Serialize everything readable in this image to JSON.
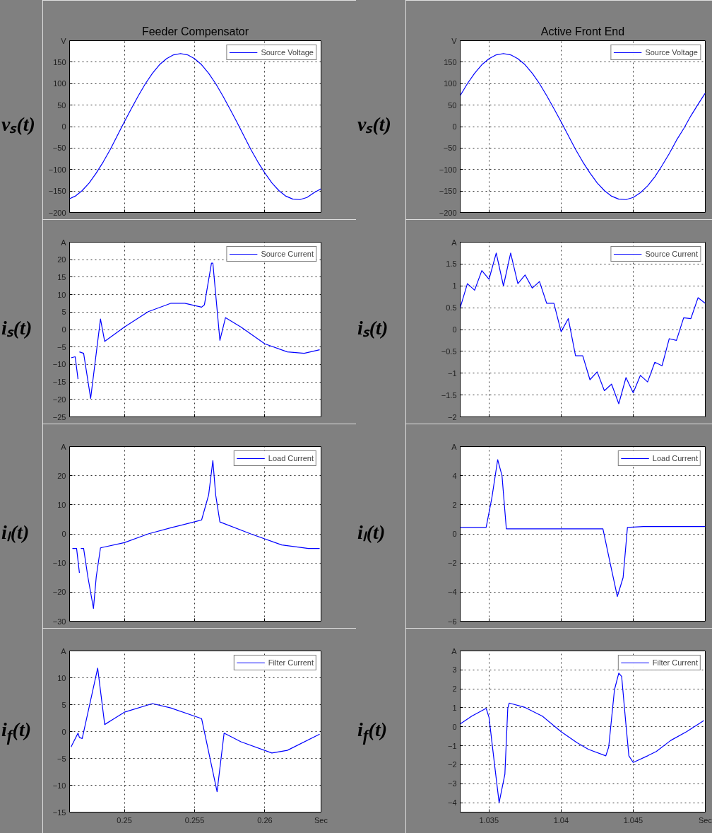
{
  "chart_data": [
    {
      "type": "line",
      "title": "Feeder Compensator",
      "ylabel": "vₛ(t)",
      "xlim": [
        0.2461,
        0.264
      ],
      "ylim": [
        -200,
        200
      ],
      "xticks": [
        0.25,
        0.255,
        0.26
      ],
      "yticks": [
        -200,
        -150,
        -100,
        -50,
        0,
        50,
        100,
        150,
        {
          "value": 200,
          "label": "V"
        }
      ],
      "tick_labels": "y",
      "grid": true,
      "legend": "top right",
      "line_style": "solid",
      "series": [
        {
          "name": "Source Voltage",
          "color": "#0000ff",
          "x": [
            0.2461,
            0.2465,
            0.247,
            0.2475,
            0.248,
            0.2485,
            0.249,
            0.2495,
            0.25,
            0.2505,
            0.251,
            0.2515,
            0.252,
            0.2525,
            0.253,
            0.2535,
            0.254,
            0.2545,
            0.255,
            0.2555,
            0.256,
            0.2565,
            0.257,
            0.2575,
            0.258,
            0.2585,
            0.259,
            0.2595,
            0.26,
            0.2605,
            0.261,
            0.2615,
            0.262,
            0.2625,
            0.263,
            0.2635,
            0.264
          ],
          "values": [
            -168,
            -162,
            -149,
            -131,
            -108,
            -82,
            -53,
            -21,
            11,
            42,
            72,
            100,
            124,
            144,
            158,
            167,
            170,
            167,
            158,
            144,
            124,
            100,
            72,
            42,
            11,
            -21,
            -53,
            -82,
            -108,
            -131,
            -149,
            -162,
            -169,
            -170,
            -165,
            -154,
            -145
          ]
        }
      ]
    },
    {
      "type": "line",
      "title": "Active Front End",
      "ylabel": "vₛ(t)",
      "xlim": [
        1.033,
        1.05
      ],
      "ylim": [
        -200,
        200
      ],
      "xticks": [
        1.035,
        1.04,
        1.045
      ],
      "yticks": [
        -200,
        -150,
        -100,
        -50,
        0,
        50,
        100,
        150,
        {
          "value": 200,
          "label": "V"
        }
      ],
      "tick_labels": "y",
      "grid": true,
      "legend": "top right",
      "line_style": "solid",
      "series": [
        {
          "name": "Source Voltage",
          "color": "#0000ff",
          "x": [
            1.033,
            1.0335,
            1.034,
            1.0345,
            1.035,
            1.0355,
            1.036,
            1.0365,
            1.037,
            1.0375,
            1.038,
            1.0385,
            1.039,
            1.0395,
            1.04,
            1.0405,
            1.041,
            1.0415,
            1.042,
            1.0425,
            1.043,
            1.0435,
            1.044,
            1.0445,
            1.045,
            1.0455,
            1.046,
            1.0465,
            1.047,
            1.0475,
            1.048,
            1.0485,
            1.049,
            1.0495,
            1.05
          ],
          "values": [
            72,
            100,
            124,
            144,
            158,
            167,
            170,
            167,
            158,
            144,
            124,
            100,
            72,
            42,
            11,
            -21,
            -53,
            -82,
            -108,
            -131,
            -149,
            -162,
            -169,
            -170,
            -165,
            -154,
            -138,
            -117,
            -91,
            -63,
            -32,
            -5,
            25,
            52,
            78
          ]
        }
      ]
    },
    {
      "type": "line",
      "ylabel": "iₛ(t)",
      "xlim": [
        0.2461,
        0.264
      ],
      "ylim": [
        -25,
        25
      ],
      "xticks": [
        0.25,
        0.255,
        0.26
      ],
      "yticks": [
        -25,
        -20,
        -15,
        -10,
        -5,
        0,
        5,
        10,
        15,
        20,
        {
          "value": 25,
          "label": "A"
        }
      ],
      "tick_labels": "y",
      "grid": true,
      "legend": "top right",
      "line_style": "solid",
      "series": [
        {
          "name": "Source Current",
          "color": "#0000ff",
          "x": [
            0.2468,
            0.2471,
            0.2476,
            0.2483,
            0.2486,
            0.25,
            0.2517,
            0.2533,
            0.2543,
            0.2555,
            0.2557,
            0.2562,
            0.2563,
            0.2568,
            0.2572,
            0.2583,
            0.26,
            0.2616,
            0.2628,
            0.2639
          ],
          "values": [
            -6.4,
            -6.8,
            -19.7,
            3,
            -3.4,
            0.7,
            5.1,
            7.5,
            7.5,
            6.4,
            7.1,
            19,
            19,
            -3.1,
            3.4,
            0.7,
            -4.1,
            -6.4,
            -6.8,
            -5.8
          ]
        },
        {
          "color": "#0000ff",
          "x": [
            0.2462,
            0.2465,
            0.2467
          ],
          "values": [
            -8.1,
            -7.8,
            -14.2
          ]
        }
      ]
    },
    {
      "type": "line",
      "ylabel": "iₛ(t)",
      "xlim": [
        1.033,
        1.05
      ],
      "ylim": [
        -2,
        2
      ],
      "xticks": [
        1.035,
        1.04,
        1.045
      ],
      "yticks": [
        -2,
        -1.5,
        -1,
        -0.5,
        0,
        0.5,
        1,
        1.5,
        {
          "value": 2,
          "label": "A"
        }
      ],
      "tick_labels": "y",
      "grid": true,
      "legend": "top right",
      "line_style": "solid",
      "series": [
        {
          "name": "Source Current",
          "color": "#0000ff",
          "x": [
            1.033,
            1.0335,
            1.034,
            1.0345,
            1.035,
            1.0355,
            1.036,
            1.0365,
            1.037,
            1.0375,
            1.038,
            1.0385,
            1.039,
            1.0395,
            1.04,
            1.0405,
            1.041,
            1.0415,
            1.042,
            1.0425,
            1.043,
            1.0435,
            1.044,
            1.0445,
            1.045,
            1.0455,
            1.046,
            1.0465,
            1.047,
            1.0475,
            1.048,
            1.0485,
            1.049,
            1.0495,
            1.05
          ],
          "values": [
            0.5,
            1.05,
            0.9,
            1.35,
            1.15,
            1.75,
            1.0,
            1.75,
            1.05,
            1.25,
            0.95,
            1.1,
            0.6,
            0.6,
            -0.05,
            0.25,
            -0.6,
            -0.6,
            -1.15,
            -0.97,
            -1.4,
            -1.25,
            -1.7,
            -1.1,
            -1.45,
            -1.05,
            -1.2,
            -0.75,
            -0.83,
            -0.21,
            -0.25,
            0.27,
            0.25,
            0.73,
            0.6
          ]
        }
      ]
    },
    {
      "type": "line",
      "ylabel": "iₗ(t)",
      "xlim": [
        0.2461,
        0.264
      ],
      "ylim": [
        -30,
        30
      ],
      "xticks": [
        0.25,
        0.255,
        0.26
      ],
      "yticks": [
        -30,
        -20,
        -10,
        0,
        10,
        20,
        {
          "value": 30,
          "label": "A"
        }
      ],
      "tick_labels": "y",
      "grid": true,
      "legend": "top right",
      "line_style": "solid",
      "series": [
        {
          "name": "Load Current",
          "color": "#0000ff",
          "x": [
            0.2469,
            0.2471,
            0.2474,
            0.2478,
            0.248,
            0.2483,
            0.25,
            0.2517,
            0.2534,
            0.2552,
            0.2555,
            0.256,
            0.2563,
            0.2565,
            0.2568,
            0.259,
            0.2612,
            0.2631,
            0.2639
          ],
          "values": [
            -5,
            -5,
            -14.7,
            -25.6,
            -14.7,
            -4.8,
            -3,
            0,
            2.2,
            4.4,
            4.8,
            13.4,
            25.2,
            13.4,
            4.1,
            0,
            -3.8,
            -5,
            -5
          ]
        },
        {
          "color": "#0000ff",
          "x": [
            0.2463,
            0.2466,
            0.2468
          ],
          "values": [
            -5,
            -5,
            -13.4
          ]
        }
      ]
    },
    {
      "type": "line",
      "ylabel": "iₗ(t)",
      "xlim": [
        1.033,
        1.05
      ],
      "ylim": [
        -6,
        6
      ],
      "xticks": [
        1.035,
        1.04,
        1.045
      ],
      "yticks": [
        -6,
        -4,
        -2,
        0,
        2,
        4,
        {
          "value": 6,
          "label": "A"
        }
      ],
      "tick_labels": "y",
      "grid": true,
      "legend": "top right",
      "line_style": "solid",
      "series": [
        {
          "name": "Load Current",
          "color": "#0000ff",
          "x": [
            1.033,
            1.0348,
            1.0352,
            1.0356,
            1.0359,
            1.0362,
            1.0429,
            1.0434,
            1.0439,
            1.0443,
            1.0446,
            1.0457,
            1.05
          ],
          "values": [
            0.44,
            0.44,
            2.5,
            5.1,
            4.0,
            0.35,
            0.35,
            -2,
            -4.3,
            -3,
            0.44,
            0.5,
            0.5
          ]
        }
      ]
    },
    {
      "type": "line",
      "ylabel": "i$_{f}$(t)",
      "xlim": [
        0.2461,
        0.264
      ],
      "ylim": [
        -15,
        15
      ],
      "xticks": [
        0.25,
        0.255,
        0.26,
        {
          "value": 0.264,
          "label": "Sec"
        }
      ],
      "yticks": [
        -15,
        -10,
        -5,
        0,
        5,
        10,
        {
          "value": 15,
          "label": "A"
        }
      ],
      "grid": true,
      "legend": "top right",
      "line_style": "solid",
      "series": [
        {
          "name": "Filter Current",
          "color": "#0000ff",
          "x": [
            0.2462,
            0.2467,
            0.2468,
            0.247,
            0.2481,
            0.2486,
            0.25,
            0.252,
            0.2533,
            0.2555,
            0.2566,
            0.2571,
            0.2583,
            0.2605,
            0.2616,
            0.2639
          ],
          "values": [
            -2.9,
            -0.3,
            -1.1,
            -1.3,
            11.8,
            1.3,
            3.6,
            5.2,
            4.4,
            2.4,
            -11.2,
            -0.3,
            -1.9,
            -4,
            -3.5,
            -0.5
          ]
        }
      ]
    },
    {
      "type": "line",
      "ylabel": "i$_{f}$(t)",
      "xlim": [
        1.033,
        1.05
      ],
      "ylim": [
        -4.5,
        4
      ],
      "xticks": [
        1.035,
        1.04,
        1.045,
        {
          "value": 1.05,
          "label": "Sec"
        }
      ],
      "yticks": [
        -4,
        -3,
        -2,
        -1,
        0,
        1,
        2,
        3,
        {
          "value": 4,
          "label": "A"
        }
      ],
      "grid": true,
      "legend": "top right",
      "line_style": "solid",
      "series": [
        {
          "name": "Filter Current",
          "color": "#0000ff",
          "x": [
            1.033,
            1.0338,
            1.0348,
            1.035,
            1.0354,
            1.0357,
            1.0361,
            1.0363,
            1.0364,
            1.0375,
            1.0387,
            1.04,
            1.0411,
            1.0419,
            1.0431,
            1.0433,
            1.0437,
            1.044,
            1.0442,
            1.0445,
            1.0447,
            1.045,
            1.046,
            1.0466,
            1.0476,
            1.0487,
            1.0499
          ],
          "values": [
            0.15,
            0.56,
            0.97,
            0.5,
            -2.1,
            -4.0,
            -2.5,
            0.97,
            1.25,
            1.02,
            0.56,
            -0.26,
            -0.84,
            -1.19,
            -1.53,
            -1.07,
            1.95,
            2.83,
            2.65,
            0.09,
            -1.53,
            -1.88,
            -1.53,
            -1.3,
            -0.72,
            -0.26,
            0.33
          ]
        }
      ]
    }
  ]
}
